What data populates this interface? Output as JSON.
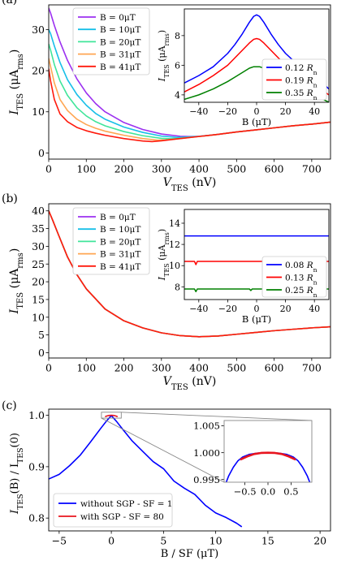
{
  "chart_data": [
    {
      "panel_label": "(a)",
      "type": "line",
      "xlabel_main": "V",
      "xlabel_sub": "TES",
      "xlabel_unit": " (nV)",
      "ylabel_main": "I",
      "ylabel_sub": "TES",
      "ylabel_unit_pre": " (μA",
      "ylabel_unit_sub": "rms",
      "ylabel_unit_post": ")",
      "xlim": [
        0,
        750
      ],
      "ylim": [
        -1.5,
        36
      ],
      "xticks": [
        0,
        100,
        200,
        300,
        400,
        500,
        600,
        700
      ],
      "yticks": [
        0,
        10,
        20,
        30
      ],
      "legend": {
        "position": "top-left"
      },
      "series": [
        {
          "name": "B = 0μT",
          "color": "#9b30f0",
          "x": [
            0,
            5,
            15,
            30,
            50,
            75,
            100,
            125,
            150,
            200,
            250,
            300,
            350,
            375,
            400,
            450,
            500,
            550,
            600,
            650,
            700,
            750
          ],
          "y": [
            35.2,
            34.0,
            31.0,
            27.0,
            22.5,
            18.0,
            14.6,
            12.0,
            10.0,
            7.4,
            5.7,
            4.6,
            4.05,
            4.0,
            4.05,
            4.5,
            5.1,
            5.6,
            6.1,
            6.6,
            7.0,
            7.5
          ]
        },
        {
          "name": "B = 10μT",
          "color": "#17bfe8",
          "x": [
            0,
            5,
            15,
            30,
            50,
            75,
            100,
            125,
            150,
            200,
            250,
            300,
            340,
            360,
            400,
            450,
            500,
            550,
            600,
            650,
            700,
            750
          ],
          "y": [
            30.0,
            29.0,
            26.0,
            22.0,
            17.8,
            14.2,
            11.6,
            9.6,
            8.2,
            6.3,
            5.0,
            4.1,
            3.8,
            3.85,
            4.05,
            4.5,
            5.1,
            5.6,
            6.1,
            6.6,
            7.0,
            7.5
          ]
        },
        {
          "name": "B = 20μT",
          "color": "#40e59a",
          "x": [
            0,
            5,
            15,
            30,
            50,
            75,
            100,
            125,
            150,
            200,
            250,
            300,
            325,
            350,
            400,
            450,
            500,
            550,
            600,
            650,
            700,
            750
          ],
          "y": [
            26.5,
            25.0,
            21.5,
            17.5,
            14.0,
            11.0,
            9.0,
            7.6,
            6.6,
            5.2,
            4.2,
            3.55,
            3.45,
            3.6,
            4.0,
            4.5,
            5.1,
            5.6,
            6.1,
            6.6,
            7.0,
            7.5
          ]
        },
        {
          "name": "B = 31μT",
          "color": "#ffa652",
          "x": [
            0,
            5,
            15,
            30,
            50,
            75,
            100,
            125,
            150,
            200,
            250,
            290,
            310,
            350,
            400,
            450,
            500,
            550,
            600,
            650,
            700,
            750
          ],
          "y": [
            23.0,
            21.0,
            17.0,
            13.0,
            10.3,
            8.2,
            6.9,
            6.0,
            5.3,
            4.3,
            3.5,
            3.1,
            3.15,
            3.5,
            4.0,
            4.5,
            5.1,
            5.6,
            6.1,
            6.6,
            7.0,
            7.5
          ]
        },
        {
          "name": "B = 41μT",
          "color": "#ff1a0d",
          "x": [
            0,
            5,
            15,
            30,
            50,
            75,
            100,
            125,
            150,
            200,
            250,
            275,
            300,
            350,
            400,
            450,
            500,
            550,
            600,
            650,
            700,
            750
          ],
          "y": [
            20.5,
            17.5,
            13.0,
            9.5,
            7.6,
            6.2,
            5.4,
            4.8,
            4.3,
            3.5,
            2.9,
            2.75,
            2.95,
            3.5,
            4.0,
            4.5,
            5.1,
            5.6,
            6.1,
            6.6,
            7.0,
            7.5
          ]
        }
      ],
      "inset": {
        "type": "line",
        "xlabel": "B (μT)",
        "ylabel_main": "I",
        "ylabel_sub": "TES",
        "ylabel_unit_pre": " (μA",
        "ylabel_unit_sub": "rms",
        "ylabel_unit_post": ")",
        "xlim": [
          -50,
          50
        ],
        "ylim": [
          3.5,
          9.8
        ],
        "xticks": [
          -40,
          -20,
          0,
          20,
          40
        ],
        "yticks": [
          4,
          6,
          8
        ],
        "legend": {
          "position": "bottom-right"
        },
        "series": [
          {
            "name": "0.12",
            "name_unit": "R",
            "name_sub": "n",
            "color": "#0000ff",
            "x": [
              -50,
              -40,
              -30,
              -20,
              -15,
              -10,
              -5,
              -2,
              0,
              2,
              5,
              10,
              15,
              20,
              30,
              40,
              50
            ],
            "y": [
              4.8,
              5.3,
              5.9,
              6.8,
              7.4,
              8.1,
              8.9,
              9.3,
              9.4,
              9.3,
              8.9,
              8.1,
              7.4,
              6.8,
              5.9,
              5.3,
              4.4
            ]
          },
          {
            "name": "0.19",
            "name_unit": "R",
            "name_sub": "n",
            "color": "#ff0000",
            "x": [
              -50,
              -40,
              -30,
              -20,
              -15,
              -10,
              -5,
              -2,
              0,
              2,
              5,
              10,
              15,
              20,
              30,
              40,
              50
            ],
            "y": [
              4.2,
              4.7,
              5.3,
              6.0,
              6.5,
              7.0,
              7.5,
              7.75,
              7.8,
              7.75,
              7.5,
              7.0,
              6.5,
              6.0,
              5.3,
              4.7,
              4.0
            ]
          },
          {
            "name": "0.35",
            "name_unit": "R",
            "name_sub": "n",
            "color": "#008000",
            "x": [
              -50,
              -40,
              -30,
              -20,
              -15,
              -10,
              -5,
              -2,
              0,
              2,
              5,
              10,
              15,
              20,
              30,
              40,
              50
            ],
            "y": [
              3.7,
              4.0,
              4.4,
              4.9,
              5.2,
              5.5,
              5.8,
              5.9,
              5.9,
              5.9,
              5.8,
              5.5,
              5.2,
              4.9,
              4.4,
              4.0,
              3.5
            ]
          }
        ]
      }
    },
    {
      "panel_label": "(b)",
      "type": "line",
      "xlabel_main": "V",
      "xlabel_sub": "TES",
      "xlabel_unit": " (nV)",
      "ylabel_main": "I",
      "ylabel_sub": "TES",
      "ylabel_unit_pre": " (μA",
      "ylabel_unit_sub": "rms",
      "ylabel_unit_post": ")",
      "xlim": [
        0,
        750
      ],
      "ylim": [
        -1.5,
        42
      ],
      "xticks": [
        0,
        100,
        200,
        300,
        400,
        500,
        600,
        700
      ],
      "yticks": [
        0,
        5,
        10,
        15,
        20,
        25,
        30,
        35,
        40
      ],
      "legend": {
        "position": "top-left"
      },
      "series": [
        {
          "name": "B = 0μT",
          "color": "#9b30f0",
          "x": [
            0,
            10,
            25,
            50,
            75,
            100,
            150,
            200,
            250,
            300,
            350,
            400,
            450,
            500,
            550,
            600,
            650,
            700,
            750
          ],
          "y": [
            40.0,
            37.5,
            33.5,
            27.0,
            22.0,
            18.0,
            12.3,
            9.0,
            7.0,
            5.6,
            4.8,
            4.5,
            4.7,
            5.2,
            5.7,
            6.2,
            6.6,
            7.0,
            7.3
          ]
        },
        {
          "name": "B = 10μT",
          "color": "#17bfe8",
          "x": [
            0,
            10,
            25,
            50,
            75,
            100,
            150,
            200,
            250,
            300,
            350,
            400,
            450,
            500,
            550,
            600,
            650,
            700,
            750
          ],
          "y": [
            40.0,
            37.5,
            33.5,
            27.0,
            22.0,
            18.0,
            12.3,
            9.0,
            7.0,
            5.6,
            4.8,
            4.5,
            4.7,
            5.2,
            5.7,
            6.2,
            6.6,
            7.0,
            7.3
          ]
        },
        {
          "name": "B = 20μT",
          "color": "#40e59a",
          "x": [
            0,
            10,
            25,
            50,
            75,
            100,
            150,
            200,
            250,
            300,
            350,
            400,
            450,
            500,
            550,
            600,
            650,
            700,
            750
          ],
          "y": [
            40.0,
            37.5,
            33.5,
            27.0,
            22.0,
            18.0,
            12.3,
            9.0,
            7.0,
            5.6,
            4.8,
            4.5,
            4.7,
            5.2,
            5.7,
            6.2,
            6.6,
            7.0,
            7.3
          ]
        },
        {
          "name": "B = 31μT",
          "color": "#ffa652",
          "x": [
            0,
            10,
            25,
            50,
            75,
            100,
            150,
            200,
            250,
            300,
            350,
            400,
            450,
            500,
            550,
            600,
            650,
            700,
            750
          ],
          "y": [
            40.0,
            37.5,
            33.5,
            27.0,
            22.0,
            18.0,
            12.3,
            9.0,
            7.0,
            5.6,
            4.8,
            4.5,
            4.7,
            5.2,
            5.7,
            6.2,
            6.6,
            7.0,
            7.3
          ]
        },
        {
          "name": "B = 41μT",
          "color": "#ff1a0d",
          "x": [
            0,
            10,
            25,
            50,
            75,
            100,
            150,
            200,
            250,
            300,
            350,
            400,
            450,
            500,
            550,
            600,
            650,
            700,
            750
          ],
          "y": [
            40.0,
            37.5,
            33.5,
            27.0,
            22.0,
            18.0,
            12.3,
            9.0,
            7.0,
            5.6,
            4.8,
            4.5,
            4.7,
            5.2,
            5.7,
            6.2,
            6.6,
            7.0,
            7.3
          ]
        }
      ],
      "inset": {
        "type": "line",
        "xlabel": "B (μT)",
        "ylabel_main": "I",
        "ylabel_sub": "TES",
        "ylabel_unit_pre": " (μA",
        "ylabel_unit_sub": "rms",
        "ylabel_unit_post": ")",
        "xlim": [
          -50,
          50
        ],
        "ylim": [
          6.8,
          15.3
        ],
        "xticks": [
          -40,
          -20,
          0,
          20,
          40
        ],
        "yticks": [
          8,
          10,
          12,
          14
        ],
        "legend": {
          "position": "bottom-right"
        },
        "series": [
          {
            "name": "0.08",
            "name_unit": "R",
            "name_sub": "n",
            "color": "#0000ff",
            "x": [
              -50,
              -25,
              0,
              25,
              50
            ],
            "y": [
              12.8,
              12.8,
              12.8,
              12.8,
              12.8
            ]
          },
          {
            "name": "0.13",
            "name_unit": "R",
            "name_sub": "n",
            "color": "#ff0000",
            "x": [
              -50,
              -43,
              -42,
              -41,
              0,
              25,
              50
            ],
            "y": [
              10.4,
              10.4,
              10.1,
              10.4,
              10.4,
              10.4,
              10.4
            ]
          },
          {
            "name": "0.25",
            "name_unit": "R",
            "name_sub": "n",
            "color": "#008000",
            "x": [
              -50,
              -43,
              -42,
              -41,
              -5,
              -4,
              -3,
              25,
              50
            ],
            "y": [
              7.8,
              7.8,
              7.55,
              7.8,
              7.8,
              7.65,
              7.8,
              7.8,
              7.8
            ]
          }
        ]
      }
    },
    {
      "panel_label": "(c)",
      "type": "line",
      "xlabel": "B / SF (μT)",
      "ylabel_pre": "I",
      "ylabel_sub1": "TES",
      "ylabel_mid": "(B) / I",
      "ylabel_sub2": "TES",
      "ylabel_post": "(0)",
      "xlim": [
        -6,
        21
      ],
      "ylim": [
        0.775,
        1.012
      ],
      "xticks": [
        -5,
        0,
        5,
        10,
        15,
        20
      ],
      "yticks": [
        0.8,
        0.9,
        1.0
      ],
      "legend": {
        "position": "bottom-left"
      },
      "series": [
        {
          "name": "without SGP - SF = 1",
          "color": "#0000ff",
          "x": [
            -6,
            -5,
            -4,
            -3,
            -2,
            -1,
            -0.5,
            0,
            0.5,
            1,
            2,
            3,
            4,
            5,
            6,
            7,
            8,
            9,
            10,
            11,
            12,
            12.5
          ],
          "y": [
            0.876,
            0.885,
            0.902,
            0.922,
            0.948,
            0.975,
            0.988,
            0.9995,
            0.988,
            0.975,
            0.95,
            0.93,
            0.91,
            0.896,
            0.872,
            0.858,
            0.846,
            0.825,
            0.81,
            0.801,
            0.79,
            0.783
          ]
        },
        {
          "name": "with SGP - SF = 80",
          "color": "#e8141e",
          "x": [
            -0.6,
            -0.45,
            -0.3,
            -0.15,
            0,
            0.15,
            0.3,
            0.45,
            0.6
          ],
          "y": [
            0.9972,
            0.9985,
            0.9994,
            0.9998,
            1.0,
            0.9998,
            0.9994,
            0.9985,
            0.9972
          ]
        }
      ],
      "inset": {
        "type": "line",
        "xlim": [
          -0.95,
          0.95
        ],
        "ylim": [
          0.9945,
          1.006
        ],
        "xticks": [
          -0.5,
          0.0,
          0.5
        ],
        "xtick_labels": [
          "−0.5",
          "0.0",
          "0.5"
        ],
        "yticks": [
          0.995,
          1.0,
          1.005
        ],
        "ytick_labels": [
          "0.995",
          "1.000",
          "1.005"
        ],
        "series": [
          {
            "name": "without SGP - SF = 1",
            "color": "#0000ff",
            "x": [
              -0.95,
              -0.85,
              -0.75,
              -0.65,
              -0.55,
              -0.4,
              -0.25,
              -0.1,
              0,
              0.1,
              0.25,
              0.4,
              0.55,
              0.65,
              0.75,
              0.85,
              0.95
            ],
            "y": [
              0.9935,
              0.9957,
              0.9973,
              0.9985,
              0.9992,
              0.9997,
              0.9999,
              1.0,
              1.0,
              1.0,
              0.9999,
              0.9997,
              0.9992,
              0.9985,
              0.9973,
              0.9957,
              0.9935
            ]
          },
          {
            "name": "with SGP - SF = 80",
            "color": "#e8141e",
            "x": [
              -0.6,
              -0.45,
              -0.3,
              -0.15,
              0,
              0.15,
              0.3,
              0.45,
              0.6
            ],
            "y": [
              0.9987,
              0.9993,
              0.99975,
              0.99995,
              1.0,
              0.99995,
              0.99975,
              0.9993,
              0.9987
            ]
          }
        ]
      }
    }
  ]
}
